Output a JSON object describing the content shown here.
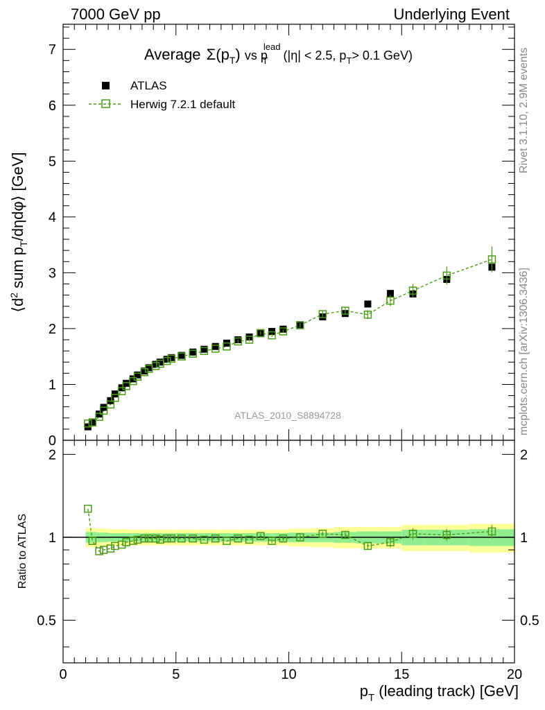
{
  "header": {
    "left": "7000 GeV pp",
    "right": "Underlying Event"
  },
  "side_labels": {
    "rivet": "Rivet 3.1.10,  2.9M events",
    "mcplots": "mcplots.cern.ch [arXiv:1306.3436]"
  },
  "colors": {
    "mc": "#4c9a16",
    "band_inner": "#90ee90",
    "band_outer": "#ffff99",
    "data": "#000000"
  },
  "chart_data": {
    "type": "scatter",
    "title_parts": {
      "t1": "Average",
      "t2": "Σ(p",
      "t3": "T",
      "t4": ")",
      "t5": "vs p",
      "t6": "lead",
      "t7": "T",
      "t8": "(|η| < 2.5, p",
      "t9": "T",
      "t10": "> 0.1 GeV)"
    },
    "ylabel_parts": {
      "y1": "⟨d",
      "y2": "2",
      "y3": " sum p",
      "y4": "T",
      "y5": "/dηdφ⟩ [GeV]"
    },
    "xlabel_parts": {
      "x1": "p",
      "x2": "T",
      "x3": " (leading track) [GeV]"
    },
    "ratio_ylabel": "Ratio to ATLAS",
    "analysis_id": "ATLAS_2010_S8894728",
    "xlim": [
      0,
      20
    ],
    "ylim": [
      0,
      7.45
    ],
    "ratio_ylim": [
      0.35,
      2.25
    ],
    "x_ticks": [
      0,
      5,
      10,
      15,
      20
    ],
    "y_ticks": [
      0,
      1,
      2,
      3,
      4,
      5,
      6,
      7
    ],
    "ratio_ticks": [
      0.5,
      1,
      2
    ],
    "series": [
      {
        "name": "ATLAS",
        "marker": "filled-square",
        "x": [
          1.1,
          1.3,
          1.6,
          1.8,
          2.1,
          2.3,
          2.6,
          2.8,
          3.1,
          3.3,
          3.6,
          3.8,
          4.1,
          4.3,
          4.6,
          4.8,
          5.25,
          5.75,
          6.25,
          6.75,
          7.25,
          7.75,
          8.25,
          8.75,
          9.25,
          9.75,
          10.5,
          11.5,
          12.5,
          13.5,
          14.5,
          15.5,
          17.0,
          19.0
        ],
        "y": [
          0.24,
          0.33,
          0.47,
          0.59,
          0.71,
          0.83,
          0.94,
          1.02,
          1.1,
          1.17,
          1.24,
          1.3,
          1.36,
          1.4,
          1.45,
          1.48,
          1.52,
          1.58,
          1.63,
          1.68,
          1.74,
          1.8,
          1.85,
          1.91,
          1.95,
          1.99,
          2.07,
          2.21,
          2.27,
          2.44,
          2.63,
          2.62,
          2.88,
          3.1
        ]
      },
      {
        "name": "Herwig 7.2.1 default",
        "marker": "open-square-dashed",
        "x": [
          1.1,
          1.3,
          1.6,
          1.8,
          2.1,
          2.3,
          2.6,
          2.8,
          3.1,
          3.3,
          3.6,
          3.8,
          4.1,
          4.3,
          4.6,
          4.8,
          5.25,
          5.75,
          6.25,
          6.75,
          7.25,
          7.75,
          8.25,
          8.75,
          9.25,
          9.75,
          10.5,
          11.5,
          12.5,
          13.5,
          14.5,
          15.5,
          17.0,
          19.0
        ],
        "y": [
          0.3,
          0.32,
          0.42,
          0.53,
          0.64,
          0.76,
          0.88,
          0.97,
          1.06,
          1.14,
          1.22,
          1.28,
          1.33,
          1.37,
          1.42,
          1.46,
          1.5,
          1.55,
          1.6,
          1.64,
          1.68,
          1.77,
          1.8,
          1.92,
          1.88,
          1.95,
          2.06,
          2.26,
          2.32,
          2.25,
          2.5,
          2.68,
          2.95,
          3.24
        ],
        "yerr": [
          0.01,
          0.01,
          0.01,
          0.01,
          0.01,
          0.01,
          0.01,
          0.01,
          0.01,
          0.01,
          0.01,
          0.01,
          0.01,
          0.01,
          0.01,
          0.01,
          0.02,
          0.02,
          0.02,
          0.02,
          0.02,
          0.03,
          0.03,
          0.03,
          0.03,
          0.03,
          0.04,
          0.05,
          0.06,
          0.08,
          0.1,
          0.12,
          0.16,
          0.23
        ]
      }
    ],
    "ratio": {
      "y": [
        1.27,
        0.97,
        0.89,
        0.9,
        0.91,
        0.93,
        0.94,
        0.96,
        0.97,
        0.98,
        0.99,
        0.99,
        0.99,
        0.98,
        0.99,
        0.99,
        0.99,
        0.99,
        0.98,
        0.99,
        0.97,
        0.99,
        0.98,
        1.01,
        0.97,
        0.99,
        1.0,
        1.03,
        1.02,
        0.93,
        0.96,
        1.03,
        1.02,
        1.05
      ],
      "yerr": [
        0.01,
        0.01,
        0.01,
        0.01,
        0.01,
        0.01,
        0.01,
        0.01,
        0.01,
        0.01,
        0.01,
        0.01,
        0.01,
        0.01,
        0.01,
        0.01,
        0.01,
        0.01,
        0.01,
        0.01,
        0.01,
        0.01,
        0.01,
        0.02,
        0.02,
        0.02,
        0.02,
        0.02,
        0.03,
        0.03,
        0.04,
        0.05,
        0.05,
        0.06
      ],
      "band_x_edges": [
        1.0,
        1.5,
        2.0,
        3.0,
        4.0,
        5.0,
        6.0,
        7.0,
        8.0,
        9.0,
        10.0,
        11.0,
        12.0,
        13.0,
        14.0,
        15.0,
        16.0,
        18.0,
        20.0
      ],
      "band_inner_half": [
        0.045,
        0.04,
        0.035,
        0.035,
        0.035,
        0.035,
        0.035,
        0.035,
        0.035,
        0.035,
        0.04,
        0.04,
        0.045,
        0.05,
        0.05,
        0.065,
        0.065,
        0.07
      ],
      "band_outer_half": [
        0.08,
        0.075,
        0.07,
        0.065,
        0.065,
        0.065,
        0.065,
        0.065,
        0.065,
        0.065,
        0.075,
        0.08,
        0.09,
        0.09,
        0.09,
        0.11,
        0.11,
        0.12
      ]
    }
  }
}
